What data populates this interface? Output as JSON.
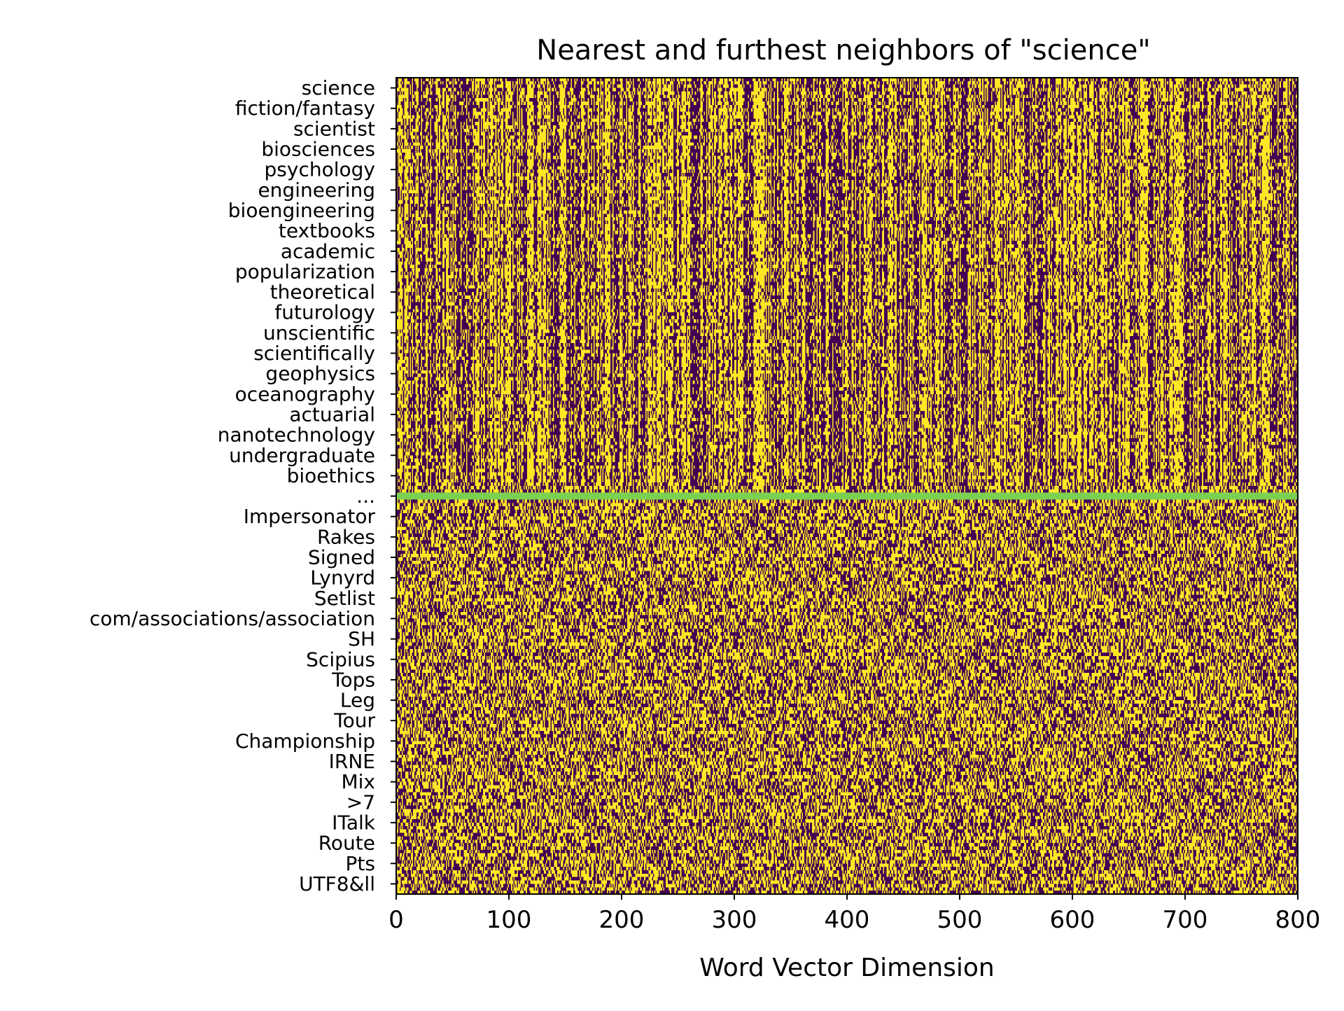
{
  "chart_data": {
    "type": "heatmap",
    "title": "Nearest and furthest neighbors of \"science\"",
    "xlabel": "Word Vector Dimension",
    "ylabel": "",
    "xlim": [
      0,
      800
    ],
    "x_ticks": [
      0,
      100,
      200,
      300,
      400,
      500,
      600,
      700,
      800
    ],
    "row_labels": [
      "science",
      "fiction/fantasy",
      "scientist",
      "biosciences",
      "psychology",
      "engineering",
      "bioengineering",
      "textbooks",
      "academic",
      "popularization",
      "theoretical",
      "futurology",
      "unscientific",
      "scientifically",
      "geophysics",
      "oceanography",
      "actuarial",
      "nanotechnology",
      "undergraduate",
      "bioethics",
      "...",
      "Impersonator",
      "Rakes",
      "Signed",
      "Lynyrd",
      "Setlist",
      "com/associations/association",
      "SH",
      "Scipius",
      "Tops",
      "Leg",
      "Tour",
      "Championship",
      "IRNE",
      "Mix",
      ">7",
      "ITalk",
      "Route",
      "Pts",
      "UTF8&ll"
    ],
    "separator_row": "...",
    "colormap": [
      "#440154",
      "#fde725"
    ],
    "separator_color": "#7ad151",
    "values_note": "binary (sign) per dimension"
  }
}
